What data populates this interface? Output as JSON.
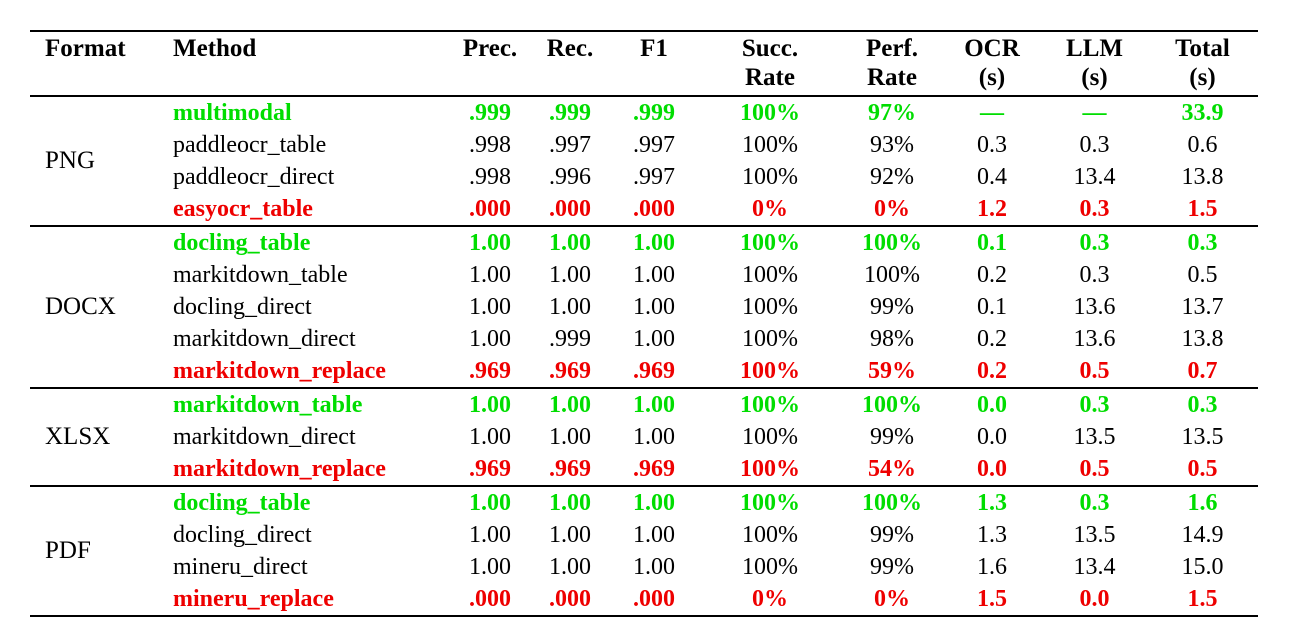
{
  "colors": {
    "best": "#00dd00",
    "worst": "#ee0000",
    "text": "#000000",
    "rule": "#000000",
    "background": "#ffffff"
  },
  "table": {
    "columns": [
      {
        "line1": "Format",
        "line2": ""
      },
      {
        "line1": "Method",
        "line2": ""
      },
      {
        "line1": "Prec.",
        "line2": ""
      },
      {
        "line1": "Rec.",
        "line2": ""
      },
      {
        "line1": "F1",
        "line2": ""
      },
      {
        "line1": "Succ.",
        "line2": "Rate"
      },
      {
        "line1": "Perf.",
        "line2": "Rate"
      },
      {
        "line1": "OCR",
        "line2": "(s)"
      },
      {
        "line1": "LLM",
        "line2": "(s)"
      },
      {
        "line1": "Total",
        "line2": "(s)"
      }
    ],
    "groups": [
      {
        "format": "PNG",
        "rows": [
          {
            "method": "multimodal",
            "highlight": "best",
            "values": [
              ".999",
              ".999",
              ".999",
              "100%",
              "97%",
              "—",
              "—",
              "33.9"
            ]
          },
          {
            "method": "paddleocr_table",
            "highlight": "none",
            "values": [
              ".998",
              ".997",
              ".997",
              "100%",
              "93%",
              "0.3",
              "0.3",
              "0.6"
            ]
          },
          {
            "method": "paddleocr_direct",
            "highlight": "none",
            "values": [
              ".998",
              ".996",
              ".997",
              "100%",
              "92%",
              "0.4",
              "13.4",
              "13.8"
            ]
          },
          {
            "method": "easyocr_table",
            "highlight": "worst",
            "values": [
              ".000",
              ".000",
              ".000",
              "0%",
              "0%",
              "1.2",
              "0.3",
              "1.5"
            ]
          }
        ]
      },
      {
        "format": "DOCX",
        "rows": [
          {
            "method": "docling_table",
            "highlight": "best",
            "values": [
              "1.00",
              "1.00",
              "1.00",
              "100%",
              "100%",
              "0.1",
              "0.3",
              "0.3"
            ]
          },
          {
            "method": "markitdown_table",
            "highlight": "none",
            "values": [
              "1.00",
              "1.00",
              "1.00",
              "100%",
              "100%",
              "0.2",
              "0.3",
              "0.5"
            ]
          },
          {
            "method": "docling_direct",
            "highlight": "none",
            "values": [
              "1.00",
              "1.00",
              "1.00",
              "100%",
              "99%",
              "0.1",
              "13.6",
              "13.7"
            ]
          },
          {
            "method": "markitdown_direct",
            "highlight": "none",
            "values": [
              "1.00",
              ".999",
              "1.00",
              "100%",
              "98%",
              "0.2",
              "13.6",
              "13.8"
            ]
          },
          {
            "method": "markitdown_replace",
            "highlight": "worst",
            "values": [
              ".969",
              ".969",
              ".969",
              "100%",
              "59%",
              "0.2",
              "0.5",
              "0.7"
            ]
          }
        ]
      },
      {
        "format": "XLSX",
        "rows": [
          {
            "method": "markitdown_table",
            "highlight": "best",
            "values": [
              "1.00",
              "1.00",
              "1.00",
              "100%",
              "100%",
              "0.0",
              "0.3",
              "0.3"
            ]
          },
          {
            "method": "markitdown_direct",
            "highlight": "none",
            "values": [
              "1.00",
              "1.00",
              "1.00",
              "100%",
              "99%",
              "0.0",
              "13.5",
              "13.5"
            ]
          },
          {
            "method": "markitdown_replace",
            "highlight": "worst",
            "values": [
              ".969",
              ".969",
              ".969",
              "100%",
              "54%",
              "0.0",
              "0.5",
              "0.5"
            ]
          }
        ]
      },
      {
        "format": "PDF",
        "rows": [
          {
            "method": "docling_table",
            "highlight": "best",
            "values": [
              "1.00",
              "1.00",
              "1.00",
              "100%",
              "100%",
              "1.3",
              "0.3",
              "1.6"
            ]
          },
          {
            "method": "docling_direct",
            "highlight": "none",
            "values": [
              "1.00",
              "1.00",
              "1.00",
              "100%",
              "99%",
              "1.3",
              "13.5",
              "14.9"
            ]
          },
          {
            "method": "mineru_direct",
            "highlight": "none",
            "values": [
              "1.00",
              "1.00",
              "1.00",
              "100%",
              "99%",
              "1.6",
              "13.4",
              "15.0"
            ]
          },
          {
            "method": "mineru_replace",
            "highlight": "worst",
            "values": [
              ".000",
              ".000",
              ".000",
              "0%",
              "0%",
              "1.5",
              "0.0",
              "1.5"
            ]
          }
        ]
      }
    ]
  }
}
